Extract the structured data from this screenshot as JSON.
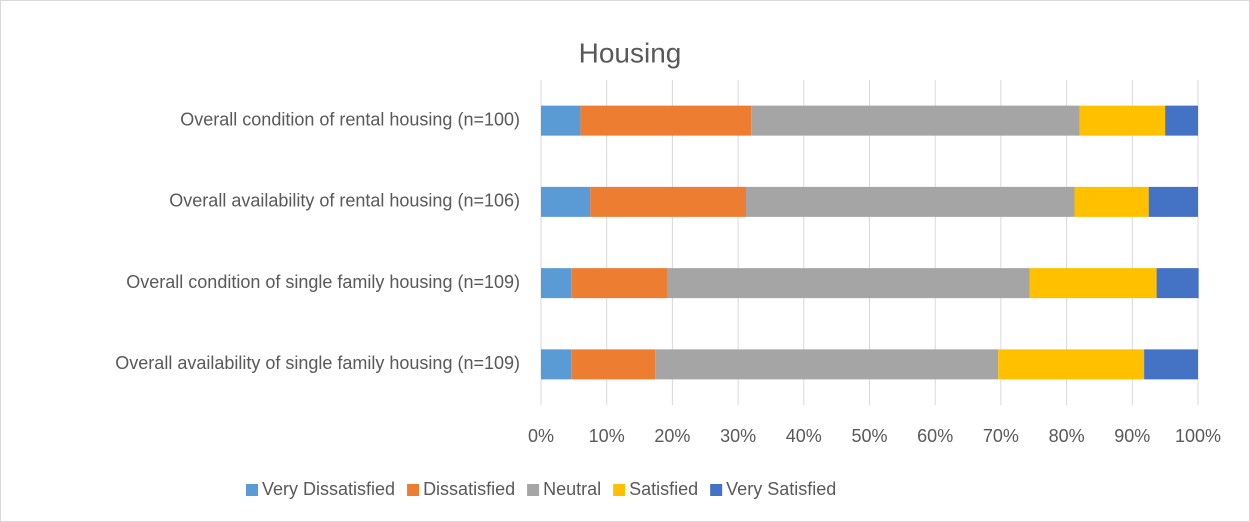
{
  "chart_data": {
    "type": "stacked_bar_horizontal",
    "title": "Housing",
    "categories": [
      "Overall condition of rental housing (n=100)",
      "Overall availability of rental housing (n=106)",
      "Overall condition of single family housing (n=109)",
      "Overall availability of single family housing (n=109)"
    ],
    "series": [
      {
        "name": "Very Dissatisfied",
        "color": "#5b9bd5",
        "values": [
          6,
          7.5,
          4.6,
          4.6
        ]
      },
      {
        "name": "Dissatisfied",
        "color": "#ed7d31",
        "values": [
          26,
          23.7,
          14.7,
          12.8
        ]
      },
      {
        "name": "Neutral",
        "color": "#a5a5a5",
        "values": [
          50,
          50,
          55.1,
          52.2
        ]
      },
      {
        "name": "Satisfied",
        "color": "#ffc000",
        "values": [
          13,
          11.3,
          19.3,
          22.2
        ]
      },
      {
        "name": "Very Satisfied",
        "color": "#4472c4",
        "values": [
          5,
          7.5,
          6.4,
          8.2
        ]
      }
    ],
    "xlim": [
      0,
      100
    ],
    "xticks": [
      {
        "value": 0,
        "label": "0%"
      },
      {
        "value": 10,
        "label": "10%"
      },
      {
        "value": 20,
        "label": "20%"
      },
      {
        "value": 30,
        "label": "30%"
      },
      {
        "value": 40,
        "label": "40%"
      },
      {
        "value": 50,
        "label": "50%"
      },
      {
        "value": 60,
        "label": "60%"
      },
      {
        "value": 70,
        "label": "70%"
      },
      {
        "value": 80,
        "label": "80%"
      },
      {
        "value": 90,
        "label": "90%"
      },
      {
        "value": 100,
        "label": "100%"
      }
    ],
    "grid": true,
    "legend": "bottom"
  }
}
